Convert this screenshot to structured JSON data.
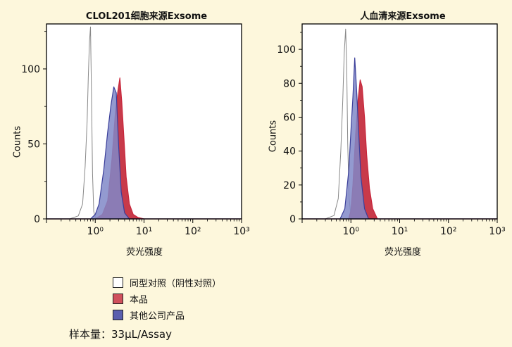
{
  "colors": {
    "background": "#fdf7dc",
    "isotype": "#ffffff",
    "product": "#c8253a",
    "product_fill": "#c83a4a",
    "other": "#3b3f9a",
    "other_fill": "#8088c8"
  },
  "chart_data": [
    {
      "type": "area",
      "title": "CLOL201细胞来源Exsome",
      "xlabel": "荧光强度",
      "ylabel": "Counts",
      "xscale": "log",
      "xlim": [
        0.1,
        1000
      ],
      "ylim": [
        0,
        130
      ],
      "yticks": [
        0,
        50,
        100
      ],
      "xticks": [
        1,
        10,
        100,
        1000
      ],
      "xtick_labels": [
        "10⁰",
        "10¹",
        "10²",
        "10³"
      ],
      "series": [
        {
          "name": "同型对照（阴性对照）",
          "x": [
            0.1,
            0.3,
            0.45,
            0.55,
            0.62,
            0.68,
            0.72,
            0.76,
            0.8,
            0.84,
            0.88,
            0.93,
            1.0,
            1.2,
            1000
          ],
          "y": [
            0,
            0,
            2,
            10,
            35,
            65,
            95,
            118,
            128,
            80,
            30,
            5,
            1,
            0,
            0
          ]
        },
        {
          "name": "本品",
          "x": [
            0.1,
            1.0,
            1.4,
            1.8,
            2.2,
            2.6,
            2.9,
            3.2,
            3.5,
            3.9,
            4.3,
            5.0,
            6.0,
            7.5,
            10,
            1000
          ],
          "y": [
            0,
            0,
            3,
            12,
            40,
            72,
            85,
            94,
            78,
            52,
            28,
            10,
            3,
            1,
            0,
            0
          ]
        },
        {
          "name": "其他公司产品",
          "x": [
            0.1,
            0.8,
            1.0,
            1.2,
            1.5,
            1.8,
            2.1,
            2.4,
            2.7,
            3.0,
            3.4,
            4.0,
            5.0,
            1000
          ],
          "y": [
            0,
            0,
            3,
            10,
            33,
            58,
            76,
            88,
            84,
            50,
            18,
            4,
            0,
            0
          ]
        }
      ]
    },
    {
      "type": "area",
      "title": "人血清来源Exsome",
      "xlabel": "荧光强度",
      "ylabel": "Counts",
      "xscale": "log",
      "xlim": [
        0.1,
        1000
      ],
      "ylim": [
        0,
        115
      ],
      "yticks": [
        0,
        20,
        40,
        60,
        80,
        100
      ],
      "xticks": [
        1,
        10,
        100,
        1000
      ],
      "xtick_labels": [
        "10⁰",
        "10¹",
        "10²",
        "10³"
      ],
      "series": [
        {
          "name": "同型对照（阴性对照）",
          "x": [
            0.1,
            0.3,
            0.45,
            0.55,
            0.62,
            0.68,
            0.73,
            0.78,
            0.82,
            0.86,
            0.92,
            1.0,
            1.2,
            1000
          ],
          "y": [
            0,
            0,
            2,
            12,
            40,
            70,
            98,
            112,
            90,
            45,
            12,
            2,
            0,
            0
          ]
        },
        {
          "name": "本品",
          "x": [
            0.1,
            0.9,
            1.0,
            1.1,
            1.25,
            1.4,
            1.55,
            1.7,
            1.9,
            2.1,
            2.4,
            2.8,
            3.5,
            1000
          ],
          "y": [
            0,
            0,
            5,
            20,
            50,
            70,
            82,
            78,
            60,
            38,
            18,
            6,
            0,
            0
          ]
        },
        {
          "name": "其他公司产品",
          "x": [
            0.1,
            0.6,
            0.75,
            0.9,
            1.0,
            1.1,
            1.2,
            1.3,
            1.45,
            1.6,
            1.9,
            2.3,
            1000
          ],
          "y": [
            0,
            0,
            6,
            28,
            52,
            72,
            95,
            78,
            50,
            25,
            6,
            0,
            0
          ]
        }
      ]
    }
  ],
  "legend": [
    {
      "label": "同型对照（阴性对照）",
      "color": "#ffffff"
    },
    {
      "label": "本品",
      "color": "#d0505c"
    },
    {
      "label": "其他公司产品",
      "color": "#5a5fae"
    }
  ],
  "sample_text": "样本量：33μL/Assay"
}
